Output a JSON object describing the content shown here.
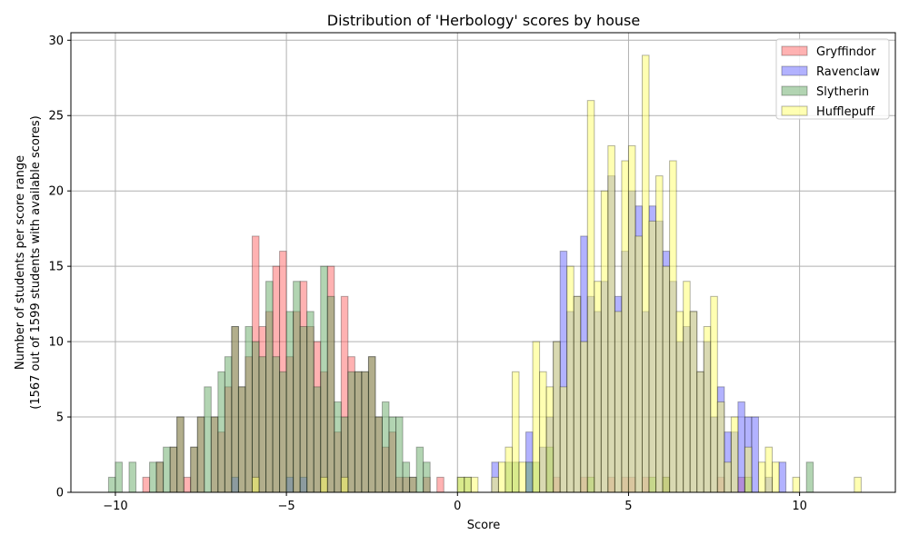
{
  "chart_data": {
    "type": "bar",
    "title": "Distribution of 'Herbology' scores by house",
    "xlabel": "Score",
    "ylabel_line1": "Number of students per score range",
    "ylabel_line2": "(1567 out of 1599 students with available scores)",
    "xlim": [
      -11.3,
      12.8
    ],
    "ylim": [
      0,
      30.5
    ],
    "xticks": [
      -10,
      -5,
      0,
      5,
      10
    ],
    "xtick_labels": [
      "−10",
      "−5",
      "0",
      "5",
      "10"
    ],
    "yticks": [
      0,
      5,
      10,
      15,
      20,
      25,
      30
    ],
    "ytick_labels": [
      "0",
      "5",
      "10",
      "15",
      "20",
      "25",
      "30"
    ],
    "grid": true,
    "legend_position": "top-right",
    "bin_width": 0.2,
    "series": [
      {
        "name": "Gryffindor",
        "color": "#ff6666",
        "bins": [
          [
            -9.2,
            1
          ],
          [
            -8.8,
            2
          ],
          [
            -8.4,
            3
          ],
          [
            -8.2,
            5
          ],
          [
            -8.0,
            1
          ],
          [
            -7.8,
            3
          ],
          [
            -7.6,
            5
          ],
          [
            -7.2,
            5
          ],
          [
            -7.0,
            4
          ],
          [
            -6.8,
            7
          ],
          [
            -6.6,
            11
          ],
          [
            -6.4,
            7
          ],
          [
            -6.2,
            9
          ],
          [
            -6.0,
            17
          ],
          [
            -5.8,
            11
          ],
          [
            -5.6,
            12
          ],
          [
            -5.4,
            15
          ],
          [
            -5.2,
            16
          ],
          [
            -5.0,
            9
          ],
          [
            -4.8,
            12
          ],
          [
            -4.6,
            14
          ],
          [
            -4.4,
            11
          ],
          [
            -4.2,
            10
          ],
          [
            -4.0,
            8
          ],
          [
            -3.8,
            15
          ],
          [
            -3.6,
            4
          ],
          [
            -3.4,
            13
          ],
          [
            -3.2,
            9
          ],
          [
            -3.0,
            8
          ],
          [
            -2.8,
            8
          ],
          [
            -2.6,
            9
          ],
          [
            -2.4,
            5
          ],
          [
            -2.2,
            3
          ],
          [
            -2.0,
            4
          ],
          [
            -1.8,
            1
          ],
          [
            -1.6,
            1
          ],
          [
            -1.4,
            1
          ],
          [
            -1.0,
            1
          ],
          [
            -0.6,
            1
          ],
          [
            2.8,
            1
          ],
          [
            3.6,
            1
          ],
          [
            4.4,
            1
          ],
          [
            4.8,
            1
          ],
          [
            5.0,
            1
          ],
          [
            5.4,
            1
          ],
          [
            6.0,
            1
          ],
          [
            7.6,
            1
          ],
          [
            8.2,
            1
          ]
        ]
      },
      {
        "name": "Ravenclaw",
        "color": "#6666ff",
        "bins": [
          [
            -6.6,
            1
          ],
          [
            -5.0,
            1
          ],
          [
            -4.6,
            1
          ],
          [
            1.0,
            2
          ],
          [
            2.0,
            4
          ],
          [
            2.4,
            3
          ],
          [
            2.6,
            5
          ],
          [
            2.8,
            10
          ],
          [
            3.0,
            16
          ],
          [
            3.2,
            12
          ],
          [
            3.4,
            13
          ],
          [
            3.6,
            17
          ],
          [
            3.8,
            13
          ],
          [
            4.0,
            12
          ],
          [
            4.2,
            14
          ],
          [
            4.4,
            21
          ],
          [
            4.6,
            13
          ],
          [
            4.8,
            16
          ],
          [
            5.0,
            20
          ],
          [
            5.2,
            19
          ],
          [
            5.4,
            12
          ],
          [
            5.6,
            19
          ],
          [
            5.8,
            18
          ],
          [
            6.0,
            16
          ],
          [
            6.2,
            14
          ],
          [
            6.4,
            10
          ],
          [
            6.6,
            11
          ],
          [
            6.8,
            12
          ],
          [
            7.0,
            8
          ],
          [
            7.2,
            10
          ],
          [
            7.4,
            5
          ],
          [
            7.6,
            7
          ],
          [
            7.8,
            4
          ],
          [
            8.0,
            4
          ],
          [
            8.2,
            6
          ],
          [
            8.4,
            5
          ],
          [
            8.6,
            5
          ],
          [
            9.0,
            1
          ],
          [
            9.4,
            2
          ]
        ]
      },
      {
        "name": "Slytherin",
        "color": "#66aa66",
        "bins": [
          [
            -10.2,
            1
          ],
          [
            -10.0,
            2
          ],
          [
            -9.6,
            2
          ],
          [
            -9.0,
            2
          ],
          [
            -8.8,
            2
          ],
          [
            -8.6,
            3
          ],
          [
            -8.4,
            3
          ],
          [
            -8.2,
            5
          ],
          [
            -7.8,
            3
          ],
          [
            -7.6,
            5
          ],
          [
            -7.4,
            7
          ],
          [
            -7.2,
            5
          ],
          [
            -7.0,
            8
          ],
          [
            -6.8,
            9
          ],
          [
            -6.6,
            11
          ],
          [
            -6.4,
            7
          ],
          [
            -6.2,
            11
          ],
          [
            -6.0,
            10
          ],
          [
            -5.8,
            9
          ],
          [
            -5.6,
            14
          ],
          [
            -5.4,
            9
          ],
          [
            -5.2,
            8
          ],
          [
            -5.0,
            12
          ],
          [
            -4.8,
            14
          ],
          [
            -4.6,
            11
          ],
          [
            -4.4,
            12
          ],
          [
            -4.2,
            7
          ],
          [
            -4.0,
            15
          ],
          [
            -3.8,
            13
          ],
          [
            -3.6,
            6
          ],
          [
            -3.4,
            5
          ],
          [
            -3.2,
            8
          ],
          [
            -3.0,
            8
          ],
          [
            -2.8,
            8
          ],
          [
            -2.6,
            9
          ],
          [
            -2.4,
            5
          ],
          [
            -2.2,
            6
          ],
          [
            -2.0,
            5
          ],
          [
            -1.8,
            5
          ],
          [
            -1.6,
            2
          ],
          [
            -1.4,
            1
          ],
          [
            -1.2,
            3
          ],
          [
            -1.0,
            2
          ],
          [
            0.0,
            1
          ],
          [
            0.2,
            1
          ],
          [
            1.4,
            2
          ],
          [
            1.6,
            2
          ],
          [
            2.0,
            2
          ],
          [
            2.2,
            2
          ],
          [
            2.6,
            3
          ],
          [
            3.8,
            1
          ],
          [
            5.6,
            1
          ],
          [
            6.0,
            1
          ],
          [
            8.4,
            1
          ],
          [
            10.2,
            2
          ]
        ]
      },
      {
        "name": "Hufflepuff",
        "color": "#ffff66",
        "bins": [
          [
            -6.0,
            1
          ],
          [
            -4.0,
            1
          ],
          [
            -3.4,
            1
          ],
          [
            0.0,
            1
          ],
          [
            0.2,
            1
          ],
          [
            0.4,
            1
          ],
          [
            1.0,
            1
          ],
          [
            1.2,
            2
          ],
          [
            1.4,
            3
          ],
          [
            1.6,
            8
          ],
          [
            1.8,
            2
          ],
          [
            2.2,
            10
          ],
          [
            2.4,
            8
          ],
          [
            2.6,
            7
          ],
          [
            2.8,
            10
          ],
          [
            3.0,
            7
          ],
          [
            3.2,
            15
          ],
          [
            3.4,
            13
          ],
          [
            3.6,
            10
          ],
          [
            3.8,
            26
          ],
          [
            4.0,
            14
          ],
          [
            4.2,
            20
          ],
          [
            4.4,
            23
          ],
          [
            4.6,
            12
          ],
          [
            4.8,
            22
          ],
          [
            5.0,
            23
          ],
          [
            5.2,
            17
          ],
          [
            5.4,
            29
          ],
          [
            5.6,
            18
          ],
          [
            5.8,
            21
          ],
          [
            6.0,
            15
          ],
          [
            6.2,
            22
          ],
          [
            6.4,
            12
          ],
          [
            6.6,
            14
          ],
          [
            6.8,
            12
          ],
          [
            7.0,
            8
          ],
          [
            7.2,
            11
          ],
          [
            7.4,
            13
          ],
          [
            7.6,
            6
          ],
          [
            7.8,
            2
          ],
          [
            8.0,
            5
          ],
          [
            8.4,
            3
          ],
          [
            8.8,
            2
          ],
          [
            9.0,
            3
          ],
          [
            9.2,
            2
          ],
          [
            9.8,
            1
          ],
          [
            11.6,
            1
          ]
        ]
      }
    ]
  }
}
